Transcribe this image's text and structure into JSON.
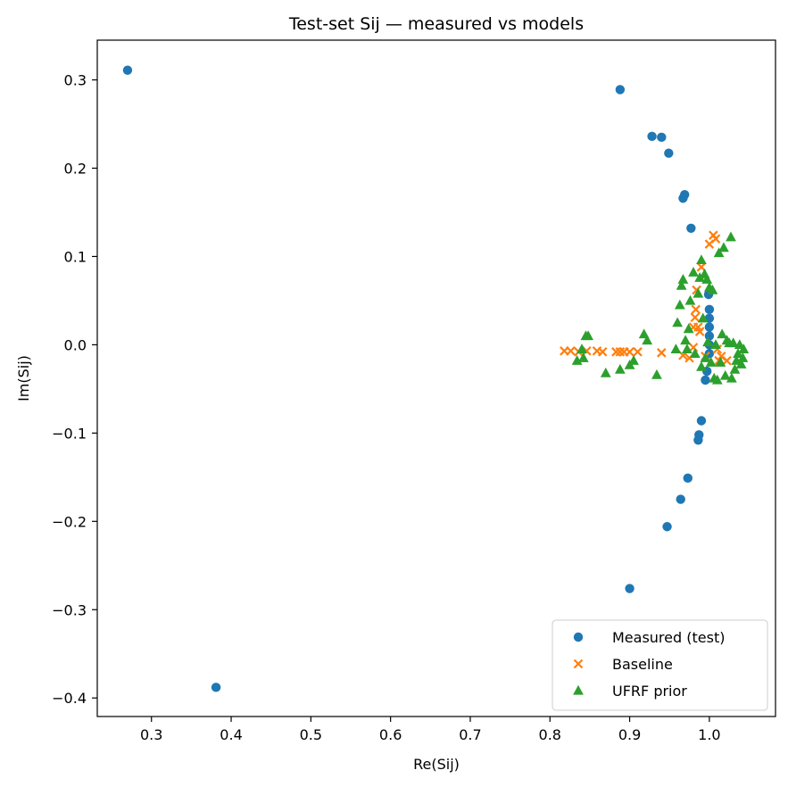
{
  "chart_data": {
    "type": "scatter",
    "title": "Test-set Sij — measured vs models",
    "xlabel": "Re(Sij)",
    "ylabel": "Im(Sij)",
    "xlim": [
      0.232,
      1.083
    ],
    "ylim": [
      -0.421,
      0.345
    ],
    "xticks": [
      0.3,
      0.4,
      0.5,
      0.6,
      0.7,
      0.8,
      0.9,
      1.0
    ],
    "xtick_labels": [
      "0.3",
      "0.4",
      "0.5",
      "0.6",
      "0.7",
      "0.8",
      "0.9",
      "1.0"
    ],
    "yticks": [
      0.3,
      0.2,
      0.1,
      0.0,
      -0.1,
      -0.2,
      -0.3,
      -0.4
    ],
    "ytick_labels": [
      "0.3",
      "0.2",
      "0.1",
      "0.0",
      "−0.1",
      "−0.2",
      "−0.3",
      "−0.4"
    ],
    "grid": false,
    "legend_position": "bottom-right",
    "series": [
      {
        "name": "Measured (test)",
        "marker": "circle",
        "color": "#1f77b4",
        "points": [
          [
            0.27,
            0.311
          ],
          [
            0.888,
            0.289
          ],
          [
            0.928,
            0.236
          ],
          [
            0.94,
            0.235
          ],
          [
            0.949,
            0.217
          ],
          [
            0.967,
            0.166
          ],
          [
            0.969,
            0.17
          ],
          [
            0.977,
            0.132
          ],
          [
            0.999,
            0.057
          ],
          [
            1.0,
            0.04
          ],
          [
            1.0,
            0.03
          ],
          [
            1.0,
            0.02
          ],
          [
            1.0,
            0.01
          ],
          [
            1.0,
            0.0
          ],
          [
            1.0,
            -0.01
          ],
          [
            0.997,
            -0.03
          ],
          [
            0.995,
            -0.04
          ],
          [
            0.99,
            -0.086
          ],
          [
            0.987,
            -0.102
          ],
          [
            0.986,
            -0.108
          ],
          [
            0.973,
            -0.151
          ],
          [
            0.964,
            -0.175
          ],
          [
            0.947,
            -0.206
          ],
          [
            0.9,
            -0.276
          ],
          [
            0.381,
            -0.388
          ]
        ]
      },
      {
        "name": "Baseline",
        "marker": "x",
        "color": "#ff7f0e",
        "points": [
          [
            0.818,
            -0.007
          ],
          [
            0.826,
            -0.007
          ],
          [
            0.836,
            -0.008
          ],
          [
            0.846,
            -0.007
          ],
          [
            0.859,
            -0.007
          ],
          [
            0.866,
            -0.008
          ],
          [
            0.883,
            -0.008
          ],
          [
            0.888,
            -0.008
          ],
          [
            0.893,
            -0.008
          ],
          [
            0.9,
            -0.008
          ],
          [
            0.91,
            -0.008
          ],
          [
            0.94,
            -0.009
          ],
          [
            0.967,
            -0.012
          ],
          [
            0.975,
            -0.015
          ],
          [
            0.98,
            -0.003
          ],
          [
            0.98,
            0.02
          ],
          [
            0.982,
            0.031
          ],
          [
            0.983,
            0.04
          ],
          [
            0.984,
            0.062
          ],
          [
            0.986,
            0.02
          ],
          [
            0.988,
            0.015
          ],
          [
            0.99,
            0.088
          ],
          [
            0.995,
            -0.013
          ],
          [
            1.0,
            0.114
          ],
          [
            1.005,
            0.124
          ],
          [
            1.008,
            0.12
          ],
          [
            1.01,
            -0.005
          ],
          [
            1.012,
            -0.018
          ],
          [
            1.015,
            -0.013
          ],
          [
            1.022,
            -0.018
          ]
        ]
      },
      {
        "name": "UFRF prior",
        "marker": "triangle",
        "color": "#2ca02c",
        "points": [
          [
            0.834,
            -0.018
          ],
          [
            0.84,
            -0.005
          ],
          [
            0.842,
            -0.015
          ],
          [
            0.845,
            0.01
          ],
          [
            0.848,
            0.01
          ],
          [
            0.87,
            -0.032
          ],
          [
            0.888,
            -0.028
          ],
          [
            0.9,
            -0.023
          ],
          [
            0.905,
            -0.018
          ],
          [
            0.918,
            0.012
          ],
          [
            0.922,
            0.005
          ],
          [
            0.934,
            -0.034
          ],
          [
            0.958,
            -0.005
          ],
          [
            0.96,
            0.025
          ],
          [
            0.963,
            0.045
          ],
          [
            0.965,
            0.067
          ],
          [
            0.967,
            0.074
          ],
          [
            0.97,
            0.005
          ],
          [
            0.972,
            -0.005
          ],
          [
            0.974,
            0.018
          ],
          [
            0.976,
            0.05
          ],
          [
            0.98,
            0.082
          ],
          [
            0.982,
            -0.01
          ],
          [
            0.986,
            0.058
          ],
          [
            0.988,
            0.076
          ],
          [
            0.99,
            0.096
          ],
          [
            0.99,
            -0.025
          ],
          [
            0.992,
            0.03
          ],
          [
            0.994,
            0.08
          ],
          [
            0.995,
            -0.015
          ],
          [
            0.997,
            0.074
          ],
          [
            0.998,
            0.003
          ],
          [
            1.0,
            0.065
          ],
          [
            1.002,
            -0.02
          ],
          [
            1.004,
            0.062
          ],
          [
            1.006,
            -0.038
          ],
          [
            1.008,
            0.0
          ],
          [
            1.01,
            -0.04
          ],
          [
            1.012,
            0.104
          ],
          [
            1.014,
            -0.02
          ],
          [
            1.016,
            0.012
          ],
          [
            1.018,
            0.11
          ],
          [
            1.02,
            -0.035
          ],
          [
            1.022,
            0.005
          ],
          [
            1.025,
            0.002
          ],
          [
            1.027,
            0.122
          ],
          [
            1.028,
            -0.038
          ],
          [
            1.03,
            0.002
          ],
          [
            1.032,
            -0.028
          ],
          [
            1.034,
            -0.018
          ],
          [
            1.036,
            -0.01
          ],
          [
            1.038,
            0.0
          ],
          [
            1.04,
            -0.022
          ],
          [
            1.042,
            -0.015
          ],
          [
            1.043,
            -0.005
          ]
        ]
      }
    ]
  }
}
